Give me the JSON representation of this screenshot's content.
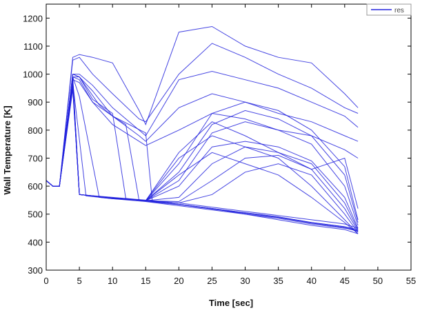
{
  "chart_data": {
    "type": "line",
    "title": "",
    "xlabel": "Time [sec]",
    "ylabel": "Wall Temperature [K]",
    "xlim": [
      0,
      55
    ],
    "ylim": [
      300,
      1250
    ],
    "xticks": [
      0,
      5,
      10,
      15,
      20,
      25,
      30,
      35,
      40,
      45,
      50,
      55
    ],
    "yticks": [
      300,
      400,
      500,
      600,
      700,
      800,
      900,
      1000,
      1100,
      1200
    ],
    "grid": false,
    "legend": {
      "position": "top-right",
      "entries": [
        "res"
      ]
    },
    "series_color": "#2222dd",
    "series": [
      {
        "name": "res",
        "x": [
          0,
          1,
          2,
          4,
          5,
          7,
          10,
          14,
          15,
          20,
          25,
          30,
          35,
          40,
          45,
          47
        ],
        "y": [
          620,
          600,
          600,
          1060,
          1070,
          1060,
          1040,
          870,
          820,
          1150,
          1170,
          1100,
          1060,
          1040,
          930,
          880
        ]
      },
      {
        "name": "res",
        "x": [
          0,
          1,
          2,
          4,
          5,
          7,
          10,
          14,
          15,
          20,
          25,
          30,
          35,
          40,
          45,
          47
        ],
        "y": [
          620,
          600,
          600,
          1050,
          1060,
          1000,
          930,
          840,
          830,
          1000,
          1110,
          1060,
          1000,
          950,
          880,
          860
        ]
      },
      {
        "name": "res",
        "x": [
          0,
          1,
          2,
          4,
          5,
          7,
          10,
          14,
          15,
          20,
          25,
          30,
          35,
          40,
          45,
          47
        ],
        "y": [
          620,
          600,
          600,
          1000,
          1000,
          960,
          880,
          800,
          780,
          980,
          1010,
          980,
          950,
          900,
          850,
          810
        ]
      },
      {
        "name": "res",
        "x": [
          0,
          1,
          2,
          4,
          5,
          7,
          10,
          14,
          15,
          20,
          25,
          30,
          35,
          40,
          45,
          47
        ],
        "y": [
          620,
          600,
          600,
          990,
          990,
          940,
          850,
          780,
          760,
          880,
          930,
          900,
          860,
          830,
          780,
          760
        ]
      },
      {
        "name": "res",
        "x": [
          0,
          1,
          2,
          4,
          5,
          7,
          10,
          14,
          15,
          20,
          25,
          30,
          35,
          40,
          45,
          47
        ],
        "y": [
          620,
          600,
          600,
          980,
          970,
          900,
          820,
          760,
          745,
          800,
          860,
          840,
          800,
          780,
          730,
          700
        ]
      },
      {
        "name": "res",
        "x": [
          0,
          1,
          2,
          4,
          5,
          10,
          15,
          20,
          25,
          30,
          35,
          40,
          45,
          47
        ],
        "y": [
          620,
          600,
          600,
          960,
          570,
          560,
          550,
          540,
          525,
          510,
          495,
          480,
          465,
          450
        ]
      },
      {
        "name": "res",
        "x": [
          0,
          1,
          2,
          4,
          6,
          10,
          15,
          20,
          25,
          30,
          35,
          40,
          45,
          47
        ],
        "y": [
          620,
          600,
          600,
          970,
          565,
          555,
          548,
          535,
          520,
          505,
          490,
          470,
          455,
          445
        ]
      },
      {
        "name": "res",
        "x": [
          0,
          1,
          2,
          4,
          5,
          8,
          10,
          15,
          20,
          25,
          30,
          35,
          40,
          45,
          47
        ],
        "y": [
          620,
          600,
          600,
          990,
          920,
          560,
          555,
          545,
          530,
          515,
          500,
          485,
          465,
          450,
          440
        ]
      },
      {
        "name": "res",
        "x": [
          0,
          1,
          2,
          4,
          5,
          7,
          10,
          12,
          15,
          20,
          25,
          30,
          35,
          40,
          45,
          47
        ],
        "y": [
          620,
          600,
          600,
          1000,
          990,
          910,
          860,
          556,
          548,
          535,
          520,
          505,
          490,
          470,
          455,
          440
        ]
      },
      {
        "name": "res",
        "x": [
          0,
          1,
          2,
          4,
          5,
          7,
          10,
          12,
          14,
          15,
          20,
          25,
          30,
          35,
          40,
          45,
          47
        ],
        "y": [
          620,
          600,
          600,
          990,
          980,
          900,
          850,
          820,
          549,
          546,
          534,
          518,
          503,
          488,
          468,
          452,
          438
        ]
      },
      {
        "name": "res",
        "x": [
          0,
          1,
          2,
          4,
          5,
          8,
          10,
          15,
          16,
          20,
          25,
          30,
          35,
          40,
          45,
          47
        ],
        "y": [
          620,
          600,
          600,
          1000,
          990,
          890,
          850,
          790,
          545,
          535,
          520,
          500,
          480,
          460,
          445,
          430
        ]
      },
      {
        "name": "res",
        "x": [
          0,
          1,
          2,
          4,
          5,
          10,
          15,
          20,
          25,
          30,
          35,
          40,
          45,
          47
        ],
        "y": [
          620,
          600,
          600,
          950,
          570,
          558,
          548,
          600,
          740,
          760,
          740,
          690,
          560,
          450
        ]
      },
      {
        "name": "res",
        "x": [
          0,
          1,
          2,
          4,
          5,
          10,
          15,
          20,
          25,
          30,
          35,
          40,
          45,
          47
        ],
        "y": [
          620,
          600,
          600,
          960,
          570,
          558,
          548,
          620,
          790,
          830,
          800,
          750,
          600,
          460
        ]
      },
      {
        "name": "res",
        "x": [
          0,
          1,
          2,
          4,
          5,
          10,
          15,
          20,
          25,
          30,
          35,
          40,
          45,
          47
        ],
        "y": [
          620,
          600,
          600,
          970,
          570,
          558,
          548,
          650,
          820,
          870,
          840,
          780,
          640,
          470
        ]
      },
      {
        "name": "res",
        "x": [
          0,
          1,
          2,
          4,
          5,
          10,
          15,
          20,
          25,
          30,
          35,
          40,
          45,
          47
        ],
        "y": [
          620,
          600,
          600,
          965,
          570,
          558,
          548,
          680,
          860,
          900,
          870,
          800,
          670,
          480
        ]
      },
      {
        "name": "res",
        "x": [
          0,
          1,
          2,
          4,
          5,
          10,
          15,
          20,
          25,
          30,
          35,
          40,
          45,
          47
        ],
        "y": [
          620,
          600,
          600,
          980,
          570,
          558,
          548,
          560,
          680,
          740,
          720,
          680,
          540,
          445
        ]
      },
      {
        "name": "res",
        "x": [
          0,
          1,
          2,
          4,
          5,
          10,
          15,
          20,
          25,
          30,
          35,
          40,
          45,
          47
        ],
        "y": [
          620,
          600,
          600,
          955,
          570,
          558,
          548,
          545,
          620,
          700,
          710,
          660,
          520,
          440
        ]
      },
      {
        "name": "res",
        "x": [
          0,
          1,
          2,
          4,
          5,
          10,
          15,
          20,
          25,
          30,
          35,
          40,
          45,
          47
        ],
        "y": [
          620,
          600,
          600,
          975,
          570,
          558,
          548,
          540,
          570,
          650,
          680,
          640,
          500,
          435
        ]
      },
      {
        "name": "res",
        "x": [
          0,
          1,
          2,
          4,
          5,
          10,
          15,
          20,
          25,
          30,
          35,
          40,
          45,
          47
        ],
        "y": [
          620,
          600,
          600,
          985,
          570,
          558,
          548,
          700,
          780,
          740,
          700,
          600,
          480,
          430
        ]
      },
      {
        "name": "res",
        "x": [
          0,
          1,
          2,
          4,
          5,
          10,
          15,
          20,
          25,
          30,
          35,
          40,
          45,
          47
        ],
        "y": [
          620,
          600,
          600,
          945,
          570,
          558,
          548,
          640,
          720,
          680,
          640,
          560,
          470,
          430
        ]
      },
      {
        "name": "res",
        "x": [
          0,
          1,
          2,
          4,
          5,
          10,
          15,
          20,
          25,
          30,
          35,
          40,
          45,
          47
        ],
        "y": [
          620,
          600,
          600,
          990,
          570,
          558,
          548,
          720,
          830,
          780,
          720,
          660,
          700,
          520
        ]
      }
    ]
  }
}
